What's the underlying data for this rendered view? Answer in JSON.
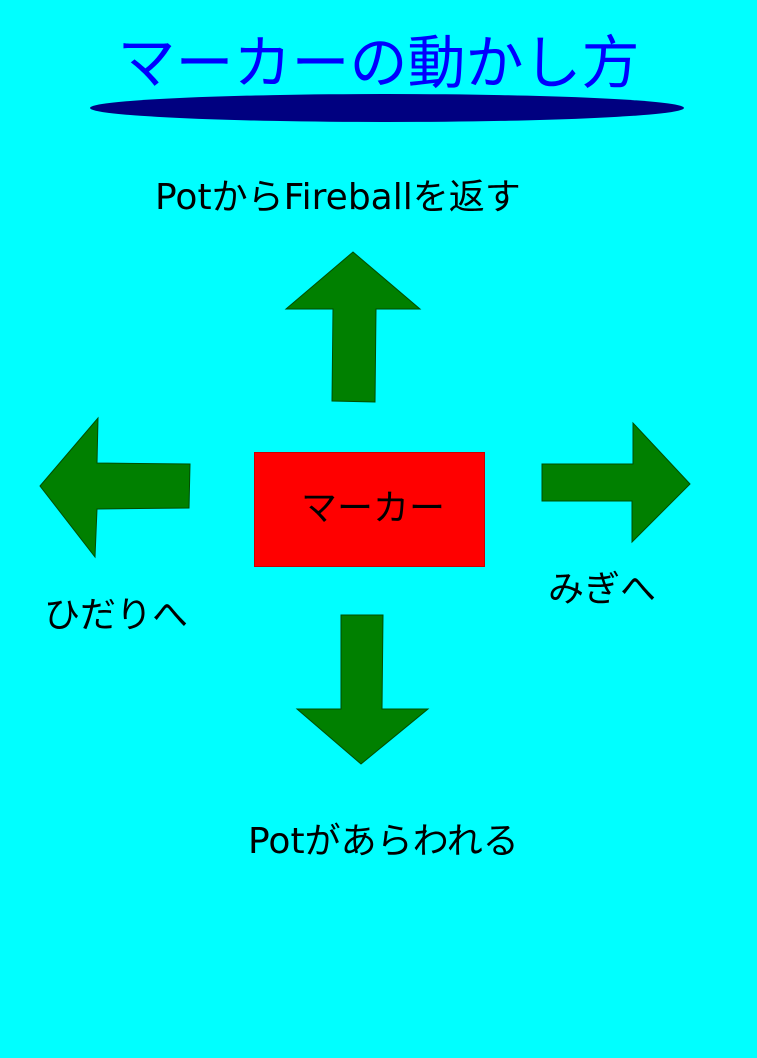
{
  "title": "マーカーの動かし方",
  "marker": {
    "label": "マーカー"
  },
  "directions": {
    "up": "PotからFireballを返す",
    "left": "ひだりへ",
    "right": "みぎへ",
    "down": "Potがあらわれる"
  },
  "colors": {
    "background": "#00ffff",
    "title": "#0000ff",
    "title_underline": "#000080",
    "arrow": "#008000",
    "marker": "#ff0000"
  },
  "icons": [
    "arrow-up-icon",
    "arrow-left-icon",
    "arrow-right-icon",
    "arrow-down-icon"
  ]
}
